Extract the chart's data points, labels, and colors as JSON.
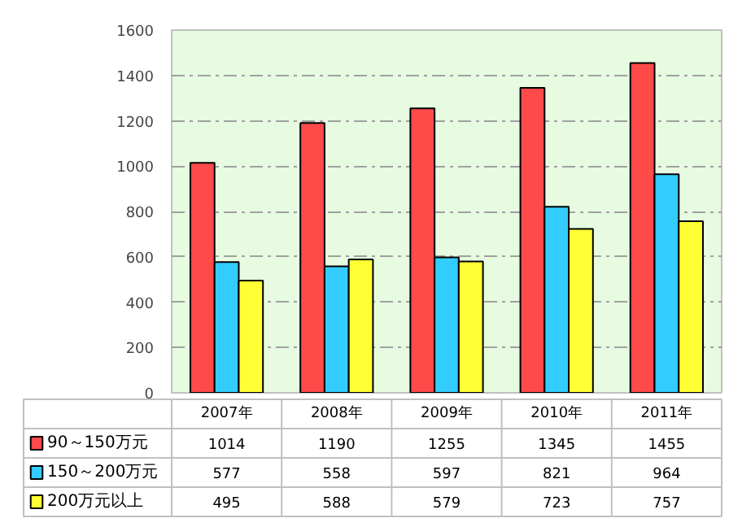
{
  "chart_data": {
    "type": "bar",
    "categories": [
      "2007年",
      "2008年",
      "2009年",
      "2010年",
      "2011年"
    ],
    "series": [
      {
        "name": "90～150万元",
        "color": "#ff4a4a",
        "values": [
          1014,
          1190,
          1255,
          1345,
          1455
        ]
      },
      {
        "name": "150～200万元",
        "color": "#33ccff",
        "values": [
          577,
          558,
          597,
          821,
          964
        ]
      },
      {
        "name": "200万元以上",
        "color": "#ffff33",
        "values": [
          495,
          588,
          579,
          723,
          757
        ]
      }
    ],
    "ylim": [
      0,
      1600
    ],
    "yticks": [
      0,
      200,
      400,
      600,
      800,
      1000,
      1200,
      1400,
      1600
    ],
    "grid": "y",
    "data_labels": true,
    "legend": "bottom"
  }
}
